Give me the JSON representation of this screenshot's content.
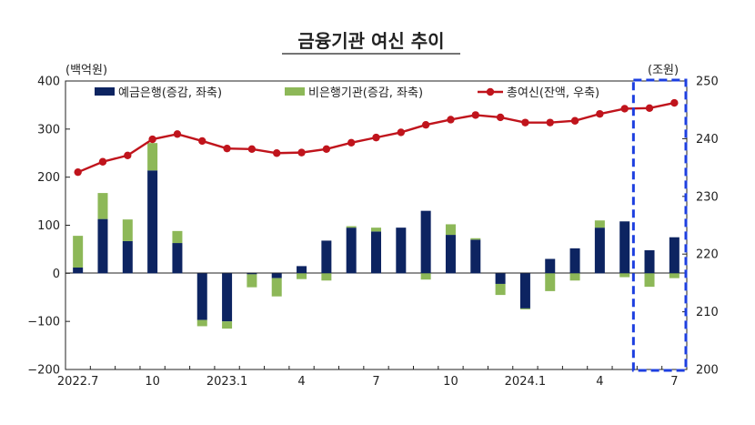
{
  "chart_data": {
    "type": "bar",
    "title": "금융기관 여신 추이",
    "y_left_unit": "(백억원)",
    "y_right_unit": "(조원)",
    "y_left_ticks": [
      "400",
      "300",
      "200",
      "100",
      "0",
      "−100",
      "−200"
    ],
    "y_right_ticks": [
      "250",
      "240",
      "230",
      "220",
      "210",
      "200"
    ],
    "ylim_left": [
      -200,
      400
    ],
    "ylim_right": [
      200,
      250
    ],
    "x_tick_labels": [
      {
        "index": 0,
        "label": "2022.7"
      },
      {
        "index": 3,
        "label": "10"
      },
      {
        "index": 6,
        "label": "2023.1"
      },
      {
        "index": 9,
        "label": "4"
      },
      {
        "index": 12,
        "label": "7"
      },
      {
        "index": 15,
        "label": "10"
      },
      {
        "index": 18,
        "label": "2024.1"
      },
      {
        "index": 21,
        "label": "4"
      },
      {
        "index": 24,
        "label": "7"
      }
    ],
    "categories": [
      "2022.7",
      "2022.8",
      "2022.9",
      "2022.10",
      "2022.11",
      "2022.12",
      "2023.1",
      "2023.2",
      "2023.3",
      "2023.4",
      "2023.5",
      "2023.6",
      "2023.7",
      "2023.8",
      "2023.9",
      "2023.10",
      "2023.11",
      "2023.12",
      "2024.1",
      "2024.2",
      "2024.3",
      "2024.4",
      "2024.5",
      "2024.6",
      "2024.7"
    ],
    "series": [
      {
        "name": "예금은행(증감, 좌축)",
        "type": "bar",
        "color": "#0d2461",
        "values": [
          12,
          113,
          67,
          214,
          63,
          -97,
          -100,
          -2,
          -10,
          15,
          68,
          95,
          87,
          95,
          130,
          80,
          70,
          -22,
          -73,
          30,
          52,
          95,
          108,
          48,
          75
        ]
      },
      {
        "name": "비은행기관(증감, 좌축)",
        "type": "bar",
        "color": "#8db858",
        "values": [
          66,
          54,
          45,
          57,
          25,
          -13,
          -15,
          -27,
          -38,
          -12,
          -15,
          3,
          8,
          0,
          -13,
          22,
          3,
          -23,
          -2,
          -37,
          -15,
          15,
          -8,
          -28,
          -10
        ]
      },
      {
        "name": "총여신(잔액, 우축)",
        "type": "line",
        "axis": "right",
        "color": "#c0141c",
        "values": [
          234.2,
          236.0,
          237.1,
          239.9,
          240.8,
          239.6,
          238.3,
          238.2,
          237.5,
          237.6,
          238.2,
          239.3,
          240.2,
          241.1,
          242.4,
          243.3,
          244.1,
          243.7,
          242.8,
          242.8,
          243.1,
          244.3,
          245.2,
          245.3,
          246.2
        ]
      }
    ],
    "highlight": {
      "from_index": 23,
      "to_index": 24,
      "style": "dashed-box",
      "color": "#1d3fe0"
    },
    "grid": false,
    "legend_position": "top"
  }
}
